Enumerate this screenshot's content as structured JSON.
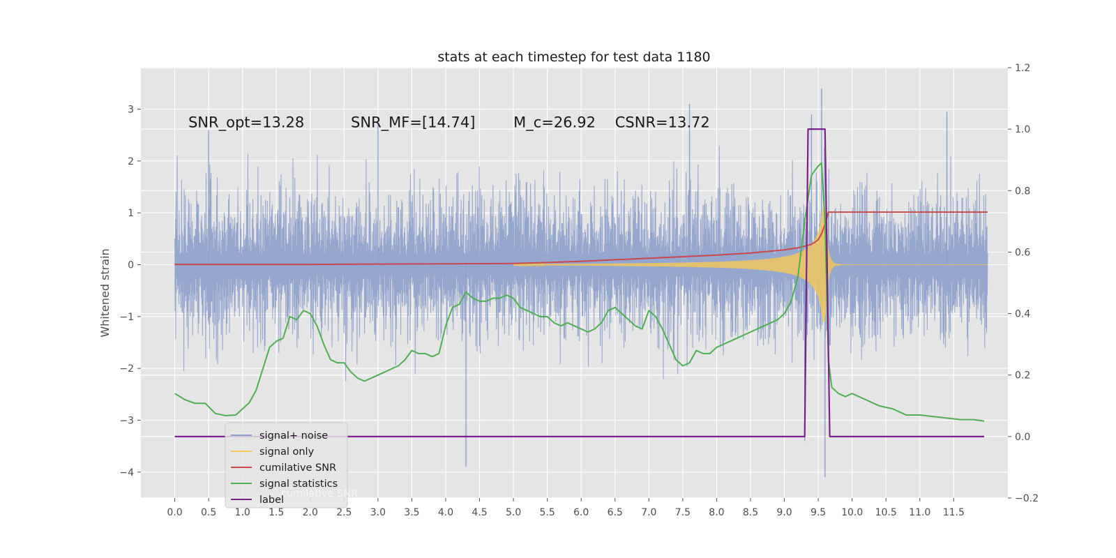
{
  "chart_data": {
    "type": "line",
    "title": "stats at each timestep for test data 1180",
    "ylabel": "Whitened strain",
    "y2label": "",
    "xlim": [
      -0.5,
      12.3
    ],
    "ylim": [
      -4.5,
      3.8
    ],
    "y2lim": [
      -0.2,
      1.2
    ],
    "x_ticks": [
      "0.0",
      "0.5",
      "1.0",
      "1.5",
      "2.0",
      "2.5",
      "3.0",
      "3.5",
      "4.0",
      "4.5",
      "5.0",
      "5.5",
      "6.0",
      "6.5",
      "7.0",
      "7.5",
      "8.0",
      "8.5",
      "9.0",
      "9.5",
      "10.0",
      "10.5",
      "11.0",
      "11.5"
    ],
    "y_ticks": [
      "3",
      "2",
      "1",
      "0",
      "−1",
      "−2",
      "−3",
      "−4"
    ],
    "y_tick_values": [
      3,
      2,
      1,
      0,
      -1,
      -2,
      -3,
      -4
    ],
    "y2_ticks": [
      "1.2",
      "1.0",
      "0.8",
      "0.6",
      "0.4",
      "0.2",
      "0.0",
      "−0.2"
    ],
    "y2_tick_values": [
      1.2,
      1.0,
      0.8,
      0.6,
      0.4,
      0.2,
      0.0,
      -0.2
    ],
    "grid": true,
    "legend_position": "lower-left",
    "annotations": [
      {
        "text": "SNR_opt=13.28",
        "x": 0.2,
        "y": 2.65
      },
      {
        "text": "SNR_MF=[14.74]",
        "x": 2.6,
        "y": 2.65
      },
      {
        "text": "M_c=26.92",
        "x": 5.0,
        "y": 2.65
      },
      {
        "text": "CSNR=13.72",
        "x": 6.5,
        "y": 2.65
      }
    ],
    "series": [
      {
        "name": "signal+ noise",
        "axis": "left",
        "color": "#8da0cb",
        "kind": "noise",
        "x_range": [
          0.0,
          12.0
        ],
        "envelope_low": -1.3,
        "envelope_high": 1.3,
        "peaks": [
          {
            "x": 4.3,
            "y": -3.9
          },
          {
            "x": 9.4,
            "y": 2.9
          },
          {
            "x": 9.55,
            "y": 3.4
          },
          {
            "x": 9.6,
            "y": -4.1
          },
          {
            "x": 9.3,
            "y": -3.4
          },
          {
            "x": 7.6,
            "y": 3.1
          },
          {
            "x": 11.4,
            "y": 2.95
          },
          {
            "x": 0.5,
            "y": 2.6
          },
          {
            "x": 3.0,
            "y": 2.7
          }
        ]
      },
      {
        "name": "signal only",
        "axis": "left",
        "color": "#f0c75e",
        "kind": "chirp",
        "x_start": 5.0,
        "x_merge": 9.6,
        "x_end": 12.0,
        "amplitude_end": 1.1
      },
      {
        "name": "cumilative SNR",
        "axis": "right",
        "color": "#c94a4a",
        "x": [
          0.0,
          1.0,
          2.0,
          3.0,
          4.0,
          5.0,
          5.5,
          6.0,
          6.5,
          7.0,
          7.5,
          8.0,
          8.5,
          9.0,
          9.2,
          9.4,
          9.5,
          9.55,
          9.6,
          9.65,
          9.7,
          12.0
        ],
        "values": [
          0.56,
          0.56,
          0.56,
          0.561,
          0.562,
          0.563,
          0.566,
          0.57,
          0.575,
          0.58,
          0.585,
          0.59,
          0.597,
          0.607,
          0.614,
          0.625,
          0.64,
          0.66,
          0.69,
          0.73,
          0.73,
          0.73
        ]
      },
      {
        "name": "signal statistics",
        "axis": "right",
        "color": "#4caf50",
        "x": [
          0.0,
          0.15,
          0.3,
          0.45,
          0.6,
          0.75,
          0.9,
          1.0,
          1.1,
          1.2,
          1.3,
          1.4,
          1.5,
          1.6,
          1.7,
          1.8,
          1.9,
          2.0,
          2.1,
          2.2,
          2.3,
          2.4,
          2.5,
          2.6,
          2.7,
          2.8,
          2.9,
          3.0,
          3.1,
          3.2,
          3.3,
          3.4,
          3.5,
          3.6,
          3.7,
          3.8,
          3.9,
          4.0,
          4.1,
          4.2,
          4.3,
          4.4,
          4.5,
          4.6,
          4.7,
          4.8,
          4.9,
          5.0,
          5.1,
          5.2,
          5.3,
          5.4,
          5.5,
          5.6,
          5.7,
          5.8,
          5.9,
          6.0,
          6.1,
          6.2,
          6.3,
          6.4,
          6.5,
          6.6,
          6.7,
          6.8,
          6.9,
          7.0,
          7.1,
          7.2,
          7.3,
          7.4,
          7.5,
          7.6,
          7.7,
          7.8,
          7.9,
          8.0,
          8.1,
          8.2,
          8.3,
          8.4,
          8.5,
          8.6,
          8.7,
          8.8,
          8.9,
          9.0,
          9.1,
          9.2,
          9.3,
          9.4,
          9.5,
          9.55,
          9.6,
          9.65,
          9.7,
          9.8,
          9.9,
          10.0,
          10.2,
          10.4,
          10.6,
          10.8,
          11.0,
          11.2,
          11.4,
          11.6,
          11.8,
          11.95
        ],
        "values": [
          0.14,
          0.12,
          0.108,
          0.108,
          0.075,
          0.068,
          0.07,
          0.09,
          0.11,
          0.15,
          0.22,
          0.29,
          0.31,
          0.32,
          0.39,
          0.38,
          0.41,
          0.4,
          0.36,
          0.3,
          0.25,
          0.24,
          0.24,
          0.21,
          0.19,
          0.18,
          0.19,
          0.2,
          0.21,
          0.22,
          0.23,
          0.25,
          0.28,
          0.27,
          0.27,
          0.26,
          0.27,
          0.36,
          0.42,
          0.43,
          0.47,
          0.45,
          0.44,
          0.44,
          0.45,
          0.45,
          0.46,
          0.45,
          0.42,
          0.41,
          0.4,
          0.39,
          0.39,
          0.37,
          0.36,
          0.37,
          0.36,
          0.35,
          0.34,
          0.35,
          0.37,
          0.41,
          0.42,
          0.4,
          0.38,
          0.36,
          0.35,
          0.41,
          0.39,
          0.35,
          0.3,
          0.25,
          0.23,
          0.24,
          0.28,
          0.27,
          0.27,
          0.29,
          0.3,
          0.31,
          0.32,
          0.33,
          0.34,
          0.35,
          0.36,
          0.37,
          0.38,
          0.4,
          0.44,
          0.52,
          0.7,
          0.85,
          0.88,
          0.89,
          0.7,
          0.25,
          0.16,
          0.14,
          0.13,
          0.14,
          0.12,
          0.1,
          0.09,
          0.07,
          0.07,
          0.065,
          0.06,
          0.055,
          0.055,
          0.05
        ]
      },
      {
        "name": "label",
        "axis": "right",
        "color": "#7a1f8c",
        "x": [
          0.0,
          9.3,
          9.35,
          9.6,
          9.67,
          11.95
        ],
        "values": [
          0.0,
          0.0,
          1.0,
          1.0,
          0.0,
          0.0
        ]
      }
    ],
    "legend_ghost_text": "cumilative SNR"
  }
}
